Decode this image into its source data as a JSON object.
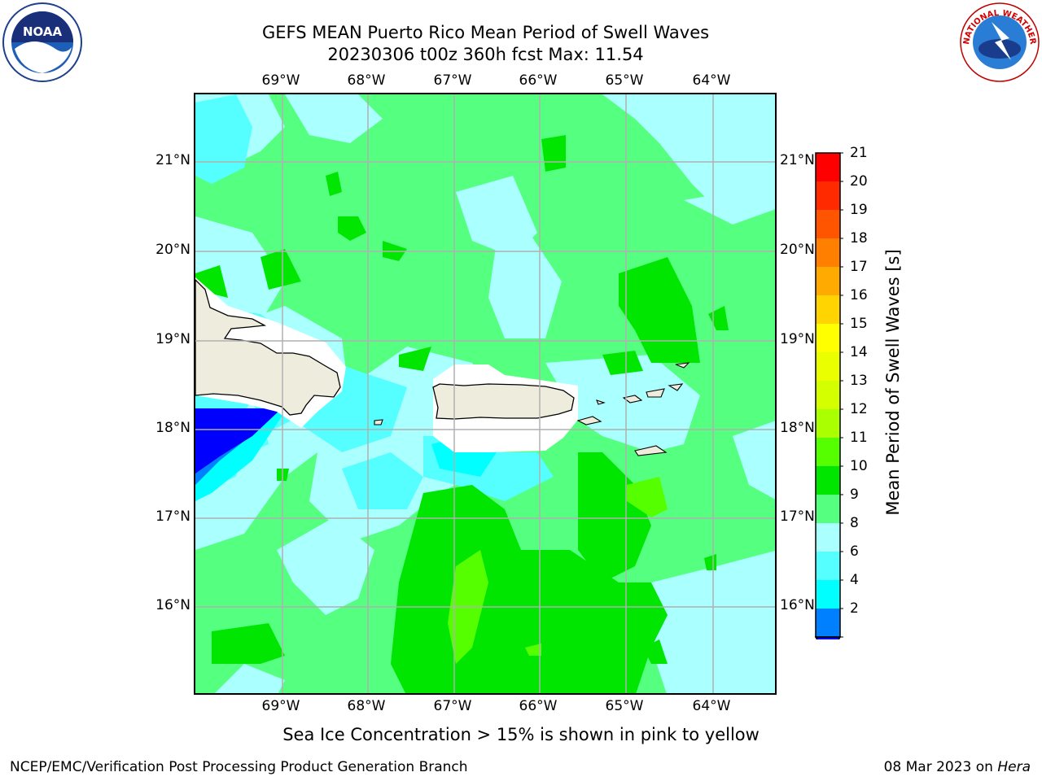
{
  "header": {
    "title_line1": "GEFS MEAN Puerto Rico Mean Period of Swell Waves",
    "title_line2": "20230306 t00z 360h fcst   Max: 11.54"
  },
  "logos": {
    "left": "noaa-logo",
    "right": "nws-logo",
    "nws_text": "NATIONAL WEATHER SERVICE",
    "noaa_text": "NOAA"
  },
  "map": {
    "lon_labels": [
      "69°W",
      "68°W",
      "67°W",
      "66°W",
      "65°W",
      "64°W"
    ],
    "lat_labels": [
      "21°N",
      "20°N",
      "19°N",
      "18°N",
      "17°N",
      "16°N"
    ],
    "land_color": "#eeecdc",
    "grid_color": "#b0b0b0"
  },
  "colorbar": {
    "label": "Mean Period of Swell Waves [s]",
    "ticks": [
      "21",
      "20",
      "19",
      "18",
      "17",
      "16",
      "15",
      "14",
      "13",
      "12",
      "11",
      "10",
      "9",
      "8",
      "6",
      "4",
      "2"
    ],
    "colors": [
      "#ff0000",
      "#ff2a00",
      "#ff5500",
      "#ff8000",
      "#ffaa00",
      "#ffd400",
      "#ffff00",
      "#eaff00",
      "#d4ff00",
      "#aaff00",
      "#55ff00",
      "#00e600",
      "#55ff80",
      "#aaffff",
      "#55ffff",
      "#00ffff",
      "#0080ff"
    ],
    "under_color": "#0000ff"
  },
  "footer": {
    "note": "Sea Ice Concentration > 15% is shown in pink to yellow",
    "left": "NCEP/EMC/Verification Post Processing Product Generation Branch",
    "date": "08 Mar 2023 on ",
    "host": "Hera"
  }
}
